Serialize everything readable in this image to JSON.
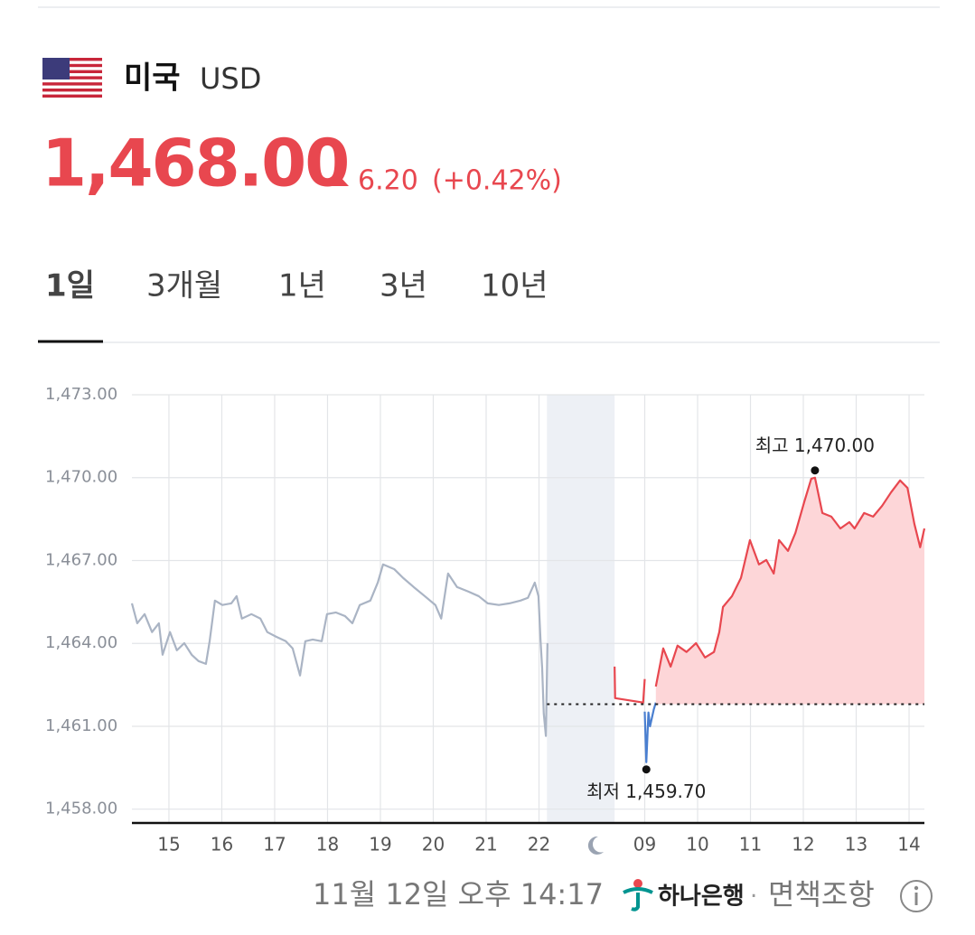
{
  "header": {
    "country": "미국",
    "currency": "USD",
    "price": "1,468.00",
    "change": "6.20",
    "change_pct": "(+0.42%)"
  },
  "tabs": [
    "1일",
    "3개월",
    "1년",
    "3년",
    "10년"
  ],
  "chart_data": {
    "type": "line",
    "xlim": [
      -0.7,
      14.29
    ],
    "ylim": [
      1457.5,
      1473
    ],
    "yticks": [
      {
        "value": 1473,
        "label": "1,473.00"
      },
      {
        "value": 1470,
        "label": "1,470.00"
      },
      {
        "value": 1467,
        "label": "1,467.00"
      },
      {
        "value": 1464,
        "label": "1,464.00"
      },
      {
        "value": 1461,
        "label": "1,461.00"
      },
      {
        "value": 1458,
        "label": "1,458.00"
      }
    ],
    "xticks": [
      {
        "value": 0,
        "label": "15"
      },
      {
        "value": 1,
        "label": "16"
      },
      {
        "value": 2,
        "label": "17"
      },
      {
        "value": 3,
        "label": "18"
      },
      {
        "value": 4,
        "label": "19"
      },
      {
        "value": 5,
        "label": "20"
      },
      {
        "value": 6,
        "label": "21"
      },
      {
        "value": 7,
        "label": "22"
      },
      {
        "value": 9,
        "label": "09"
      },
      {
        "value": 10,
        "label": "10"
      },
      {
        "value": 11,
        "label": "11"
      },
      {
        "value": 12,
        "label": "12"
      },
      {
        "value": 13,
        "label": "13"
      },
      {
        "value": 14,
        "label": "14"
      }
    ],
    "grid": true,
    "night_band": [
      7.15,
      8.43
    ],
    "baseline": 1461.8,
    "series": [
      {
        "color": "#aab4c4",
        "x": [
          -0.7,
          -0.6,
          -0.46,
          -0.32,
          -0.19,
          -0.12,
          0.02,
          0.15,
          0.29,
          0.43,
          0.56,
          0.7,
          0.77,
          0.87,
          1.01,
          1.18,
          1.28,
          1.38,
          1.56,
          1.73,
          1.86,
          2.03,
          2.21,
          2.34,
          2.48,
          2.58,
          2.72,
          2.89,
          2.99,
          3.16,
          3.33,
          3.47,
          3.61,
          3.81,
          3.95,
          4.05,
          4.26,
          4.43,
          4.63,
          4.84,
          5.04,
          5.15,
          5.28,
          5.45,
          5.66,
          5.86,
          6.03,
          6.24,
          6.44,
          6.65,
          6.79,
          6.92,
          6.99,
          7.03,
          7.06,
          7.09,
          7.13,
          7.16
        ],
        "values": [
          1465.45,
          1464.73,
          1465.06,
          1464.41,
          1464.73,
          1463.59,
          1464.41,
          1463.75,
          1464.01,
          1463.59,
          1463.36,
          1463.26,
          1464.08,
          1465.55,
          1465.39,
          1465.45,
          1465.71,
          1464.9,
          1465.06,
          1464.9,
          1464.41,
          1464.24,
          1464.08,
          1463.82,
          1462.84,
          1464.08,
          1464.14,
          1464.08,
          1465.06,
          1465.12,
          1464.99,
          1464.73,
          1465.39,
          1465.55,
          1466.2,
          1466.86,
          1466.69,
          1466.37,
          1466.04,
          1465.71,
          1465.39,
          1464.9,
          1466.53,
          1466.04,
          1465.88,
          1465.71,
          1465.45,
          1465.39,
          1465.45,
          1465.55,
          1465.65,
          1466.2,
          1465.71,
          1464.08,
          1463.1,
          1461.46,
          1460.65,
          1464.01
        ]
      },
      {
        "color": "#e8474f",
        "x": [
          8.43,
          8.44,
          8.97,
          9.0
        ],
        "values": [
          1463.16,
          1462.02,
          1461.86,
          1462.71
        ]
      },
      {
        "color": "#4a7fd0",
        "x": [
          9.0,
          9.03,
          9.07,
          9.1,
          9.17,
          9.21
        ],
        "values": [
          1461.53,
          1459.7,
          1461.5,
          1461.0,
          1461.6,
          1461.86
        ]
      },
      {
        "color": "#e8474f",
        "fill": "#fdd6d8",
        "x": [
          9.21,
          9.35,
          9.49,
          9.62,
          9.79,
          9.97,
          10.14,
          10.31,
          10.41,
          10.48,
          10.65,
          10.82,
          10.99,
          11.16,
          11.3,
          11.44,
          11.54,
          11.71,
          11.85,
          12.02,
          12.15,
          12.22,
          12.36,
          12.53,
          12.7,
          12.87,
          12.97,
          13.15,
          13.32,
          13.49,
          13.66,
          13.83,
          13.97,
          14.1,
          14.21,
          14.29
        ],
        "values": [
          1462.44,
          1463.82,
          1463.16,
          1463.92,
          1463.69,
          1464.01,
          1463.49,
          1463.69,
          1464.41,
          1465.32,
          1465.71,
          1466.37,
          1467.74,
          1466.86,
          1467.02,
          1466.53,
          1467.74,
          1467.35,
          1468.0,
          1469.14,
          1469.96,
          1470.0,
          1468.72,
          1468.59,
          1468.16,
          1468.39,
          1468.16,
          1468.72,
          1468.59,
          1468.98,
          1469.47,
          1469.9,
          1469.63,
          1468.33,
          1467.48,
          1468.16
        ]
      }
    ],
    "annotations": [
      {
        "text": "최고 1,470.00",
        "x": 12.22,
        "y": 1470.0
      },
      {
        "text": "최저 1,459.70",
        "x": 9.03,
        "y": 1459.7
      }
    ]
  },
  "footer": {
    "timestamp": "11월 12일 오후 14:17",
    "bank": "하나은행",
    "separator": "·",
    "disclaimer": "면책조항"
  }
}
